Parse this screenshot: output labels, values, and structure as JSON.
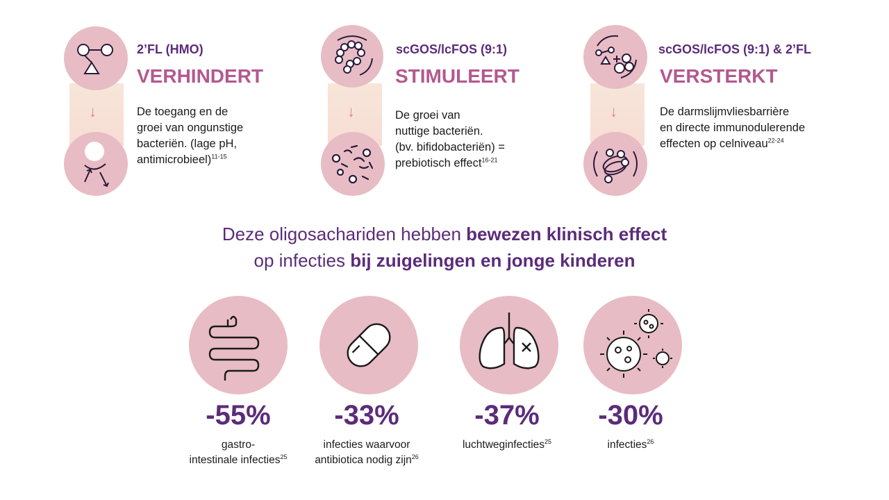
{
  "mechanisms": [
    {
      "subtitle": "2’FL (HMO)",
      "verb": "VERHINDERT",
      "desc_lines": [
        "De  toegang en de",
        "groei van ongunstige",
        "bacteriën. (lage pH,",
        "antimicrobieel)"
      ],
      "ref": "11-15",
      "icon_top": "molecule-icon",
      "icon_bottom": "repel-bacteria-icon"
    },
    {
      "subtitle": "scGOS/lcFOS (9:1)",
      "verb": "STIMULEERT",
      "desc_lines": [
        "De groei van",
        "nuttige bacteriën.",
        "(bv. bifidobacteriën) =",
        "prebiotisch effect"
      ],
      "ref": "16-21",
      "icon_top": "oligosaccharide-chain-icon",
      "icon_bottom": "bacteria-cluster-icon"
    },
    {
      "subtitle": "scGOS/lcFOS (9:1) & 2’FL",
      "verb": "VERSTERKT",
      "desc_lines": [
        "De darmslijmvliesbarrière",
        "en directe immunodulerende",
        "effecten op celniveau"
      ],
      "ref": "22-24",
      "icon_top": "combined-molecules-icon",
      "icon_bottom": "gut-barrier-icon"
    }
  ],
  "claim": {
    "line1_plain": "Deze oligosachariden hebben ",
    "line1_bold": "bewezen klinisch effect",
    "line2_plain": "op infecties ",
    "line2_bold": "bij zuigelingen en jonge kinderen"
  },
  "stats": [
    {
      "value": "-55%",
      "label_lines": [
        "gastro-",
        "intestinale infecties"
      ],
      "ref": "25",
      "icon": "intestine-icon"
    },
    {
      "value": "-33%",
      "label_lines": [
        "infecties waarvoor",
        "antibiotica nodig zijn"
      ],
      "ref": "26",
      "icon": "pill-capsule-icon"
    },
    {
      "value": "-37%",
      "label_lines": [
        "luchtweginfecties"
      ],
      "ref": "25",
      "icon": "lungs-icon"
    },
    {
      "value": "-30%",
      "label_lines": [
        "infecties"
      ],
      "ref": "26",
      "icon": "virus-icon"
    }
  ],
  "colors": {
    "circle": "#e8bcc4",
    "purple": "#5b2c7a",
    "magenta": "#b3598f",
    "arrow": "#d8838f"
  }
}
